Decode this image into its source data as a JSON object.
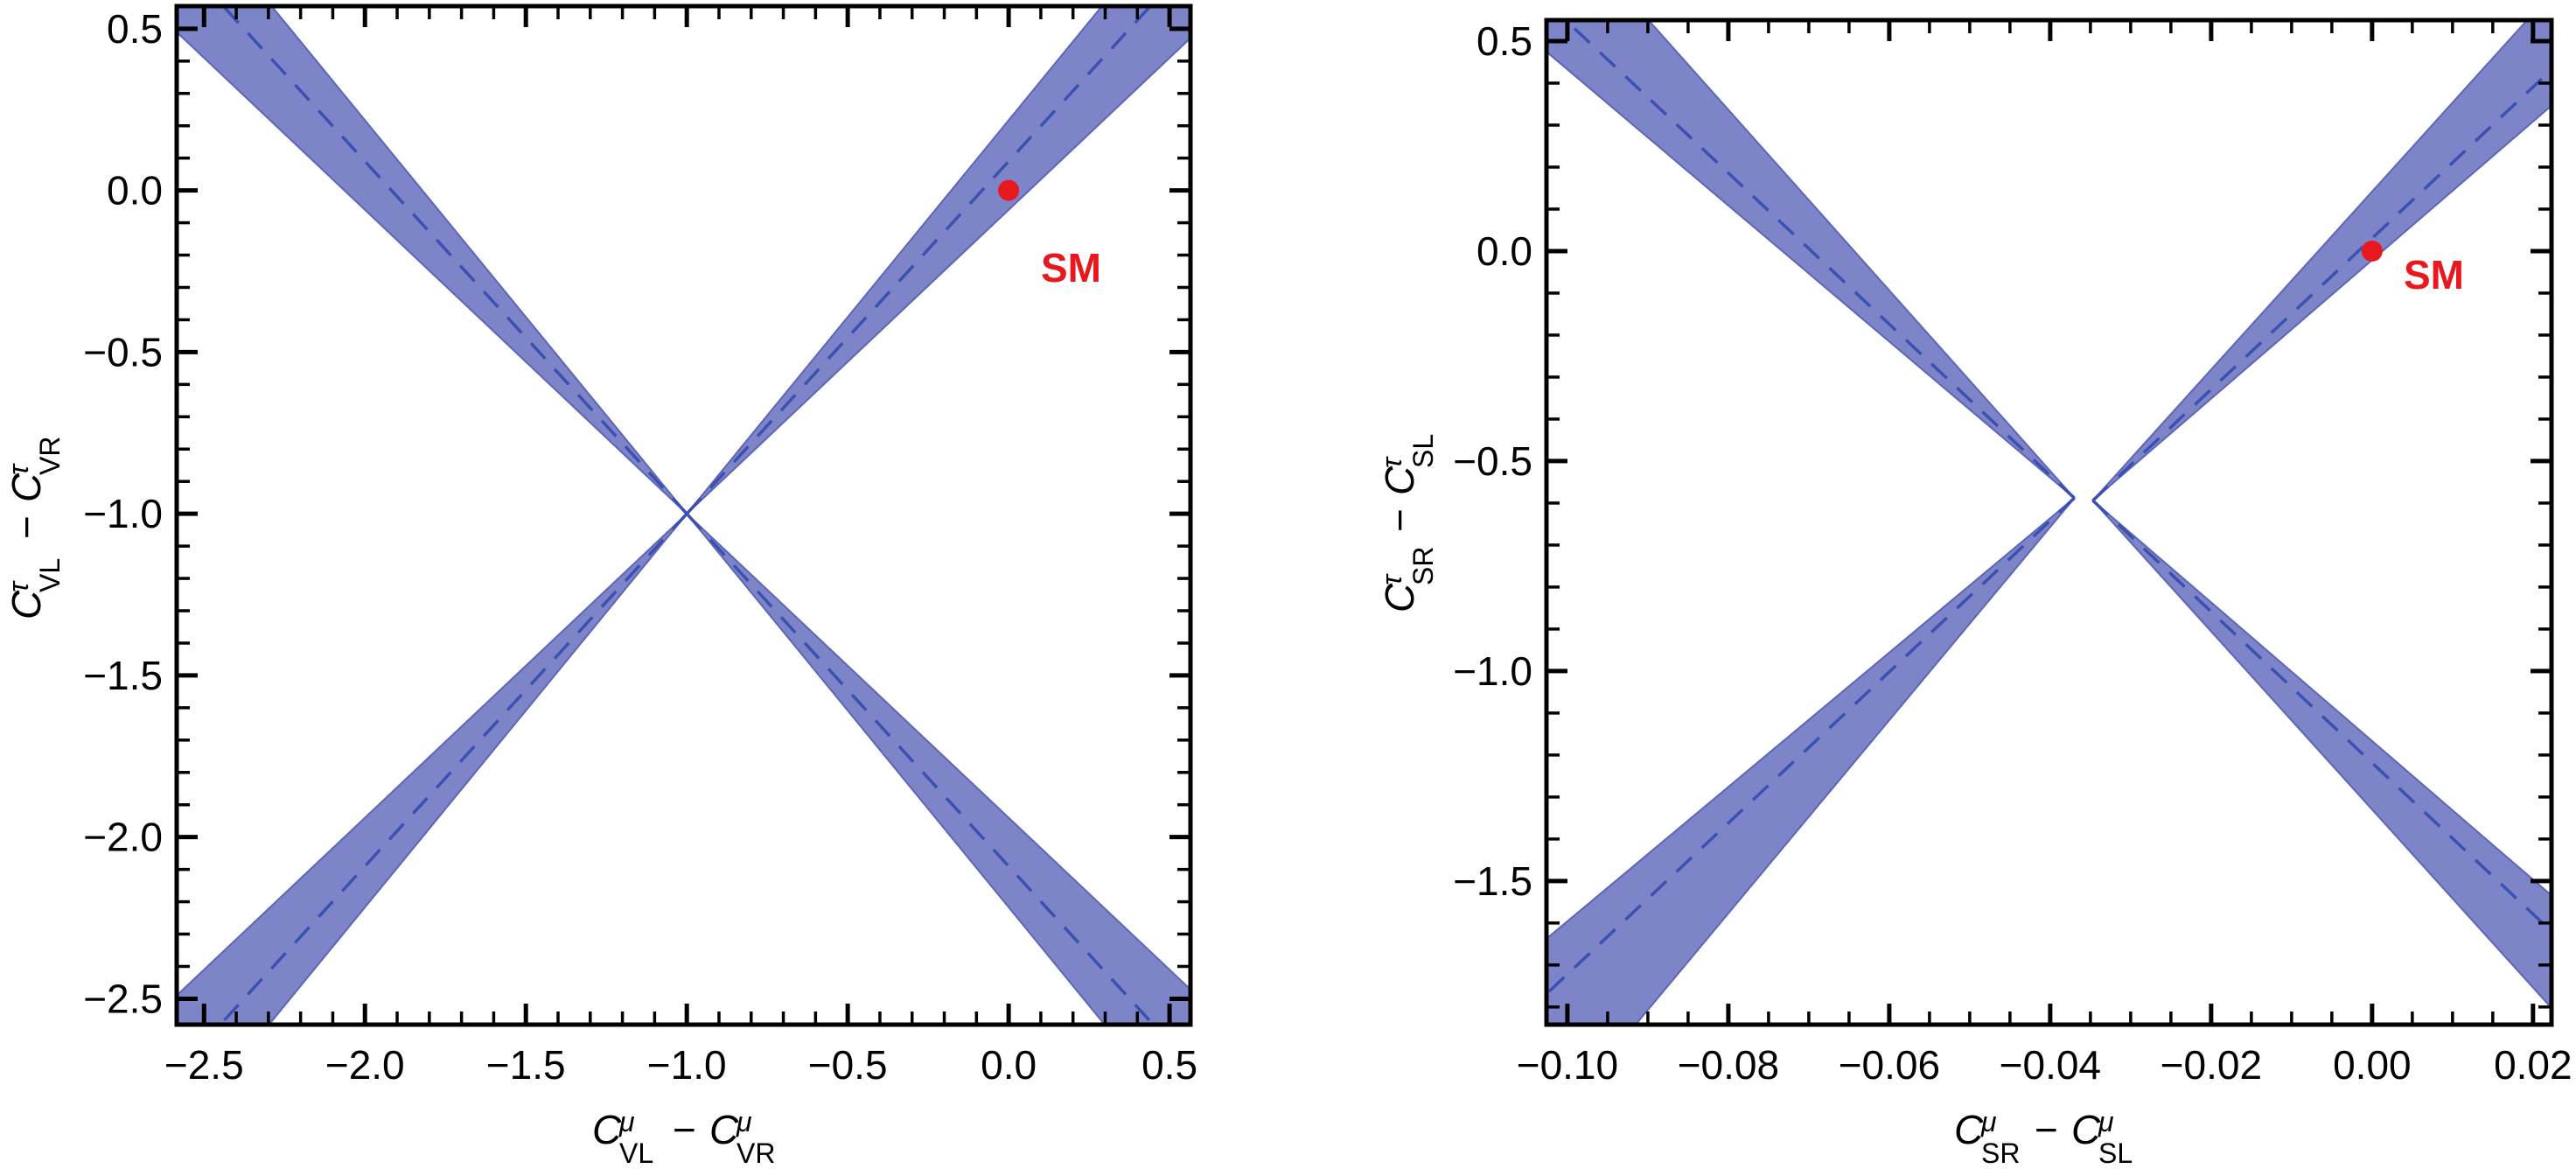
{
  "figure": {
    "background": "#ffffff",
    "description": "Two constraint plots of Wilson coefficients, X-shaped allowed bands with dashed central lines and red SM reference point"
  },
  "colors": {
    "band_fill": "#7E84C8",
    "band_edge": "#5B66B6",
    "dash_line": "#3C50B2",
    "axis": "#000000",
    "tick_label": "#000000",
    "sm_red": "#E8191E"
  },
  "chart_data": [
    {
      "id": "left-plot",
      "type": "area",
      "title": "",
      "xlabel": "C^mu_VL − C^mu_VR",
      "ylabel": "C^tau_VL − C^tau_VR",
      "xlabel_parts": [
        {
          "base": "C",
          "sup": "μ",
          "sub": "VL"
        },
        {
          "op": "−"
        },
        {
          "base": "C",
          "sup": "μ",
          "sub": "VR"
        }
      ],
      "ylabel_parts": [
        {
          "base": "C",
          "sup": "τ",
          "sub": "VL"
        },
        {
          "op": "−"
        },
        {
          "base": "C",
          "sup": "τ",
          "sub": "VR"
        }
      ],
      "xlim": [
        -2.585,
        0.565
      ],
      "ylim": [
        -2.58,
        0.57
      ],
      "xticks": [
        {
          "v": -2.5,
          "label": "−2.5"
        },
        {
          "v": -2.0,
          "label": "−2.0"
        },
        {
          "v": -1.5,
          "label": "−1.5"
        },
        {
          "v": -1.0,
          "label": "−1.0"
        },
        {
          "v": -0.5,
          "label": "−0.5"
        },
        {
          "v": 0.0,
          "label": "0.0"
        },
        {
          "v": 0.5,
          "label": "0.5"
        }
      ],
      "yticks": [
        {
          "v": 0.5,
          "label": "0.5"
        },
        {
          "v": 0.0,
          "label": "0.0"
        },
        {
          "v": -0.5,
          "label": "−0.5"
        },
        {
          "v": -1.0,
          "label": "−1.0"
        },
        {
          "v": -1.5,
          "label": "−1.5"
        },
        {
          "v": -2.0,
          "label": "−2.0"
        },
        {
          "v": -2.5,
          "label": "−2.5"
        }
      ],
      "x_minor_step": 0.1,
      "y_minor_step": 0.1,
      "grid": false,
      "crossing_point": [
        -1.0,
        -1.0
      ],
      "bands": [
        {
          "name": "band-positive-slope",
          "apex_left": [
            -1.0,
            -1.0
          ],
          "apex_right": [
            -1.0,
            -1.0
          ],
          "center_slope": 1.09,
          "edge_slopes_left": [
            0.94,
            1.217
          ],
          "edge_slopes_right": [
            0.94,
            1.217
          ]
        },
        {
          "name": "band-negative-slope",
          "apex_left": [
            -1.0,
            -1.0
          ],
          "apex_right": [
            -1.0,
            -1.0
          ],
          "center_slope": -1.09,
          "edge_slopes_left": [
            -0.94,
            -1.217
          ],
          "edge_slopes_right": [
            -0.94,
            -1.217
          ]
        }
      ],
      "sm_point": {
        "x": 0.0,
        "y": 0.0,
        "label": "SM"
      }
    },
    {
      "id": "right-plot",
      "type": "area",
      "title": "",
      "xlabel": "C^mu_SR − C^mu_SL",
      "ylabel": "C^tau_SR − C^tau_SL",
      "xlabel_parts": [
        {
          "base": "C",
          "sup": "μ",
          "sub": "SR"
        },
        {
          "op": "−"
        },
        {
          "base": "C",
          "sup": "μ",
          "sub": "SL"
        }
      ],
      "ylabel_parts": [
        {
          "base": "C",
          "sup": "τ",
          "sub": "SR"
        },
        {
          "op": "−"
        },
        {
          "base": "C",
          "sup": "τ",
          "sub": "SL"
        }
      ],
      "xlim": [
        -0.1026,
        0.0223
      ],
      "ylim": [
        -1.842,
        0.55
      ],
      "xticks": [
        {
          "v": -0.1,
          "label": "−0.10"
        },
        {
          "v": -0.08,
          "label": "−0.08"
        },
        {
          "v": -0.06,
          "label": "−0.06"
        },
        {
          "v": -0.04,
          "label": "−0.04"
        },
        {
          "v": -0.02,
          "label": "−0.02"
        },
        {
          "v": 0.0,
          "label": "0.00"
        },
        {
          "v": 0.02,
          "label": "0.02"
        }
      ],
      "yticks": [
        {
          "v": 0.5,
          "label": "0.5"
        },
        {
          "v": 0.0,
          "label": "0.0"
        },
        {
          "v": -0.5,
          "label": "−0.5"
        },
        {
          "v": -1.0,
          "label": "−1.0"
        },
        {
          "v": -1.5,
          "label": "−1.5"
        }
      ],
      "x_minor_step": 0.005,
      "y_minor_step": 0.1,
      "grid": false,
      "crossing_point": [
        -0.036,
        -0.59
      ],
      "bands": [
        {
          "name": "band-positive-slope",
          "apex_left": [
            -0.037,
            -0.588
          ],
          "apex_right": [
            -0.0347,
            -0.594
          ],
          "center_slope": 18.0,
          "edge_slopes_left": [
            16.0,
            23.0
          ],
          "edge_slopes_right": [
            16.5,
            21.2
          ]
        },
        {
          "name": "band-negative-slope",
          "apex_left": [
            -0.037,
            -0.588
          ],
          "apex_right": [
            -0.0347,
            -0.594
          ],
          "center_slope": -18.0,
          "edge_slopes_left": [
            -16.2,
            -21.5
          ],
          "edge_slopes_right": [
            -16.5,
            -21.2
          ]
        }
      ],
      "sm_point": {
        "x": 0.0,
        "y": 0.0,
        "label": "SM"
      }
    }
  ]
}
